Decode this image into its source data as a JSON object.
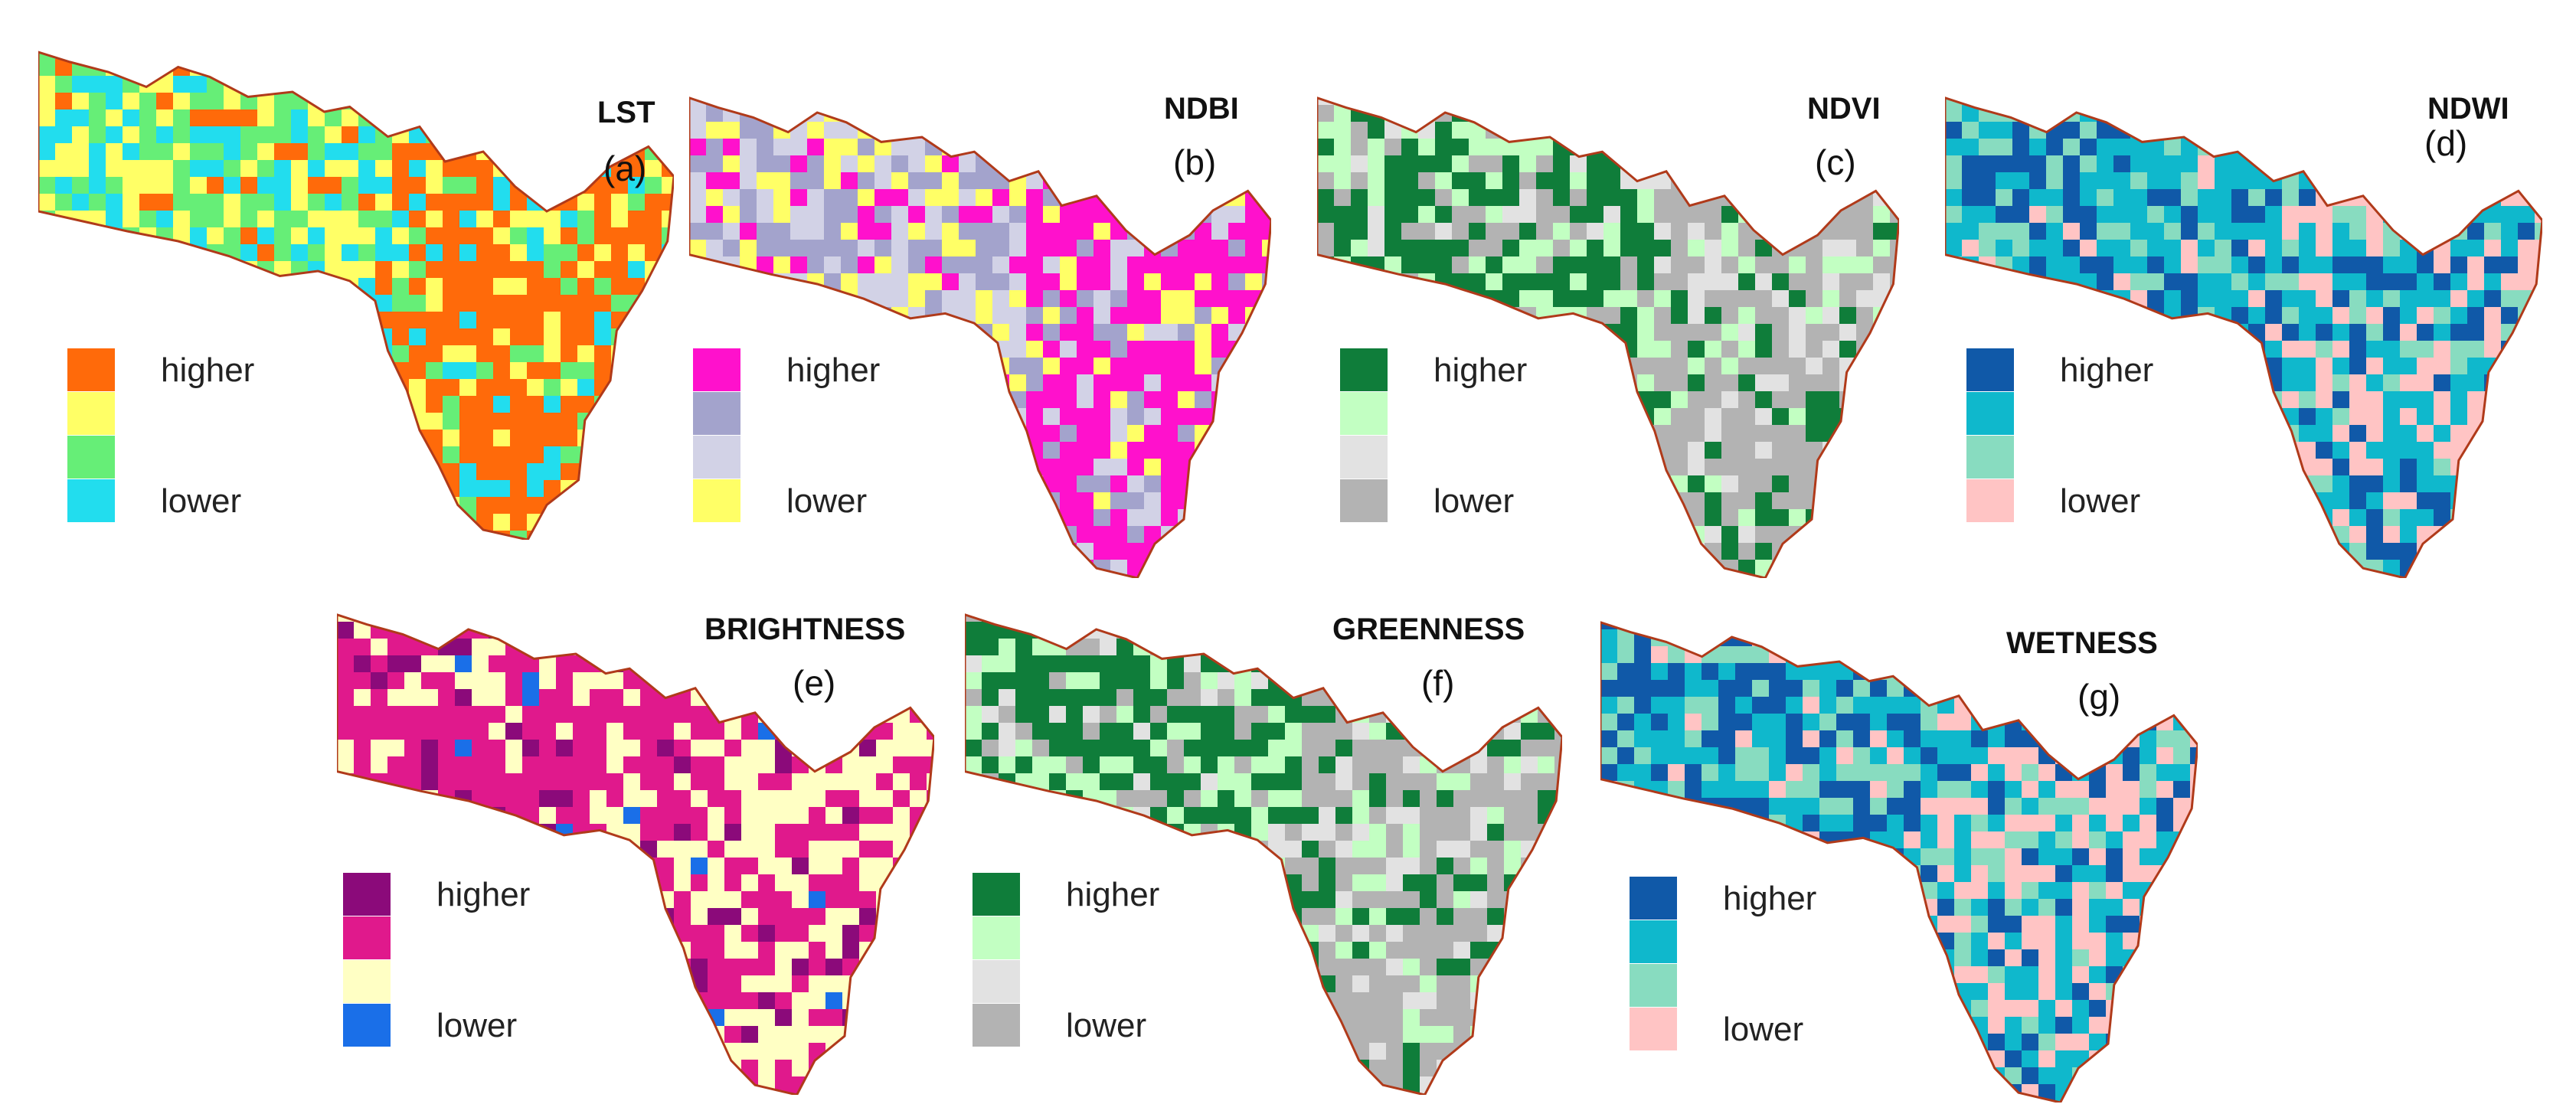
{
  "panels": [
    {
      "id": "a",
      "title": "LST",
      "letter": "(a)",
      "colors": [
        "#ff6a0a",
        "#ffff66",
        "#66ee77",
        "#22ddee"
      ],
      "labels": {
        "high": "higher",
        "low": "lower"
      }
    },
    {
      "id": "b",
      "title": "NDBI",
      "letter": "(b)",
      "colors": [
        "#ff11cc",
        "#a3a3cc",
        "#d2d2e6",
        "#ffff66"
      ],
      "labels": {
        "high": "higher",
        "low": "lower"
      }
    },
    {
      "id": "c",
      "title": "NDVI",
      "letter": "(c)",
      "colors": [
        "#0f7d3a",
        "#c2ffc2",
        "#e2e2e2",
        "#b3b3b3"
      ],
      "labels": {
        "high": "higher",
        "low": "lower"
      }
    },
    {
      "id": "d",
      "title": "NDWI",
      "letter": "(d)",
      "colors": [
        "#1059a8",
        "#0fb8cc",
        "#88dcc0",
        "#ffc4c4"
      ],
      "labels": {
        "high": "higher",
        "low": "lower"
      }
    },
    {
      "id": "e",
      "title": "BRIGHTNESS",
      "letter": "(e)",
      "colors": [
        "#8b0a7a",
        "#e0198c",
        "#ffffc4",
        "#1a6fe8"
      ],
      "labels": {
        "high": "higher",
        "low": "lower"
      }
    },
    {
      "id": "f",
      "title": "GREENNESS",
      "letter": "(f)",
      "colors": [
        "#0f7d3a",
        "#c2ffc2",
        "#e2e2e2",
        "#b3b3b3"
      ],
      "labels": {
        "high": "higher",
        "low": "lower"
      }
    },
    {
      "id": "g",
      "title": "WETNESS",
      "letter": "(g)",
      "colors": [
        "#1059a8",
        "#0fb8cc",
        "#88dcc0",
        "#ffc4c4"
      ],
      "labels": {
        "high": "higher",
        "low": "lower"
      }
    }
  ]
}
